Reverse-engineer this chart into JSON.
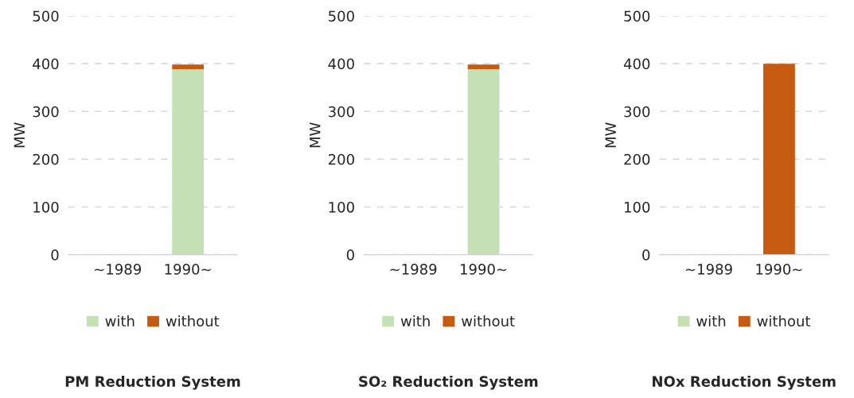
{
  "chart_data": [
    {
      "type": "bar",
      "title": "PM Reduction System",
      "ylabel": "MW",
      "categories": [
        "~1989",
        "1990~"
      ],
      "stacked": true,
      "series": [
        {
          "name": "with",
          "color": "#c5e0b4",
          "values": [
            0,
            388
          ]
        },
        {
          "name": "without",
          "color": "#c55a11",
          "values": [
            0,
            10
          ]
        }
      ],
      "ylim": [
        0,
        500
      ],
      "yticks": [
        0,
        100,
        200,
        300,
        400,
        500
      ],
      "grid": "y",
      "legend": "bottom"
    },
    {
      "type": "bar",
      "title": "SO₂ Reduction System",
      "ylabel": "MW",
      "categories": [
        "~1989",
        "1990~"
      ],
      "stacked": true,
      "series": [
        {
          "name": "with",
          "color": "#c5e0b4",
          "values": [
            0,
            388
          ]
        },
        {
          "name": "without",
          "color": "#c55a11",
          "values": [
            0,
            10
          ]
        }
      ],
      "ylim": [
        0,
        500
      ],
      "yticks": [
        0,
        100,
        200,
        300,
        400,
        500
      ],
      "grid": "y",
      "legend": "bottom"
    },
    {
      "type": "bar",
      "title": "NOx Reduction System",
      "ylabel": "MW",
      "categories": [
        "~1989",
        "1990~"
      ],
      "stacked": true,
      "series": [
        {
          "name": "with",
          "color": "#c5e0b4",
          "values": [
            0,
            0
          ]
        },
        {
          "name": "without",
          "color": "#c55a11",
          "values": [
            0,
            400
          ]
        }
      ],
      "ylim": [
        0,
        500
      ],
      "yticks": [
        0,
        100,
        200,
        300,
        400,
        500
      ],
      "grid": "y",
      "legend": "bottom"
    }
  ]
}
